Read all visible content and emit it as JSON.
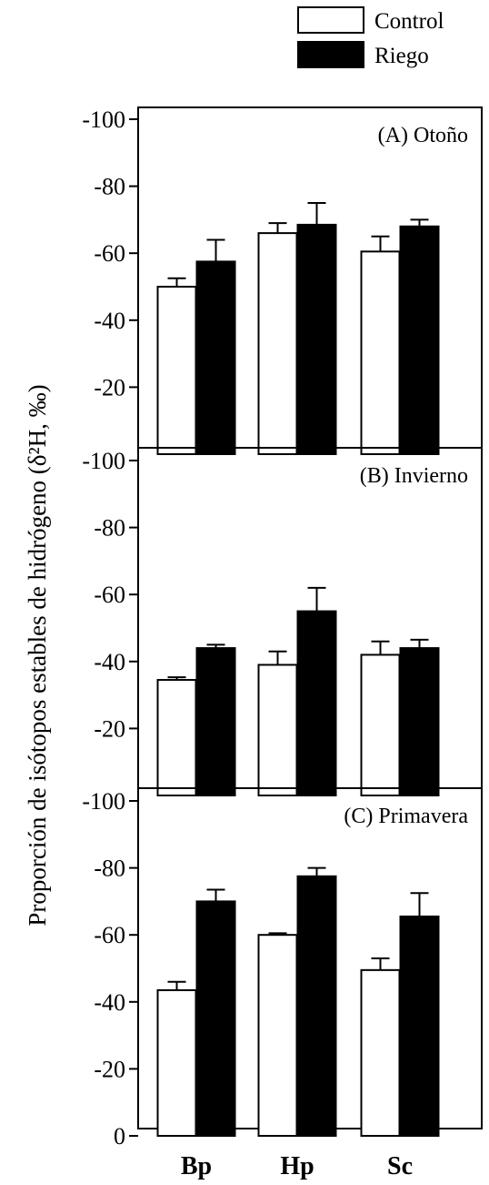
{
  "chart_data": {
    "type": "bar",
    "categories": [
      "Bp",
      "Hp",
      "Sc"
    ],
    "ylabel": "Proporción de isótopos estables de hidrógeno (δ²H, ‰)",
    "legend": {
      "placement": "top-right",
      "entries": [
        {
          "name": "Control",
          "color": "#ffffff"
        },
        {
          "name": "Riego",
          "color": "#000000"
        }
      ]
    },
    "panels": [
      {
        "label": "(A) Otoño",
        "ylim": [
          0,
          -100
        ],
        "yticks": [
          "-100",
          "-80",
          "-60",
          "-40",
          "-20"
        ],
        "series": [
          {
            "name": "Control",
            "values": [
              -50,
              -66,
              -60.5
            ],
            "errors": [
              2.5,
              3,
              4.5
            ]
          },
          {
            "name": "Riego",
            "values": [
              -57.5,
              -68.5,
              -68
            ],
            "errors": [
              6.5,
              6.5,
              2
            ]
          }
        ]
      },
      {
        "label": "(B) Invierno",
        "ylim": [
          0,
          -100
        ],
        "yticks": [
          "-100",
          "-80",
          "-60",
          "-40",
          "-20"
        ],
        "series": [
          {
            "name": "Control",
            "values": [
              -34.5,
              -39,
              -42
            ],
            "errors": [
              0.8,
              4,
              4
            ]
          },
          {
            "name": "Riego",
            "values": [
              -44,
              -55,
              -44
            ],
            "errors": [
              1,
              7,
              2.5
            ]
          }
        ]
      },
      {
        "label": "(C) Primavera",
        "ylim": [
          0,
          -100
        ],
        "yticks": [
          "-100",
          "-80",
          "-60",
          "-40",
          "-20",
          "0"
        ],
        "series": [
          {
            "name": "Control",
            "values": [
              -43.5,
              -60,
              -49.5
            ],
            "errors": [
              2.5,
              0.5,
              3.5
            ]
          },
          {
            "name": "Riego",
            "values": [
              -70,
              -77.5,
              -65.5
            ],
            "errors": [
              3.5,
              2.5,
              7
            ]
          }
        ]
      }
    ]
  }
}
